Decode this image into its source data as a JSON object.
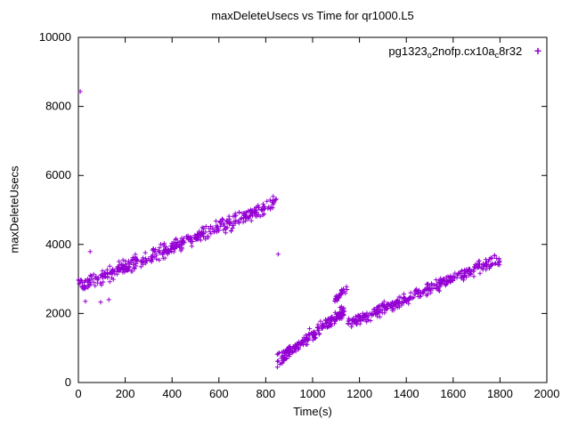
{
  "window": {
    "background": "#ffffff"
  },
  "chart": {
    "title": "maxDeleteUsecs vs Time for qr1000.L5",
    "xlabel": "Time(s)",
    "ylabel": "maxDeleteUsecs",
    "legend": {
      "p1": "pg1323",
      "s1": "o",
      "p2": "2nofp.cx10a",
      "s2": "c",
      "p3": "8r32",
      "marker": "+"
    }
  },
  "chart_data": {
    "type": "scatter",
    "title": "maxDeleteUsecs vs Time for qr1000.L5",
    "xlabel": "Time(s)",
    "ylabel": "maxDeleteUsecs",
    "xlim": [
      0,
      2000
    ],
    "ylim": [
      0,
      10000
    ],
    "xticks": [
      0,
      200,
      400,
      600,
      800,
      1000,
      1200,
      1400,
      1600,
      1800,
      2000
    ],
    "yticks": [
      0,
      2000,
      4000,
      6000,
      8000,
      10000
    ],
    "grid": false,
    "legend_position": "top-right-inside",
    "axis_color": "#000000",
    "seed": 42,
    "series": [
      {
        "name": "pg1323_o2nofp.cx10a_c8r32",
        "marker": "plus",
        "color": "#9400d3",
        "trend_segments": [
          {
            "x_start": 0,
            "x_end": 845,
            "y_start": 2780,
            "y_end": 5180,
            "points": 430,
            "noise": 260
          },
          {
            "x_start": 848,
            "x_end": 1135,
            "y_start": 640,
            "y_end": 2080,
            "points": 210,
            "noise": 230
          },
          {
            "x_start": 1095,
            "x_end": 1148,
            "y_start": 2350,
            "y_end": 2750,
            "points": 30,
            "noise": 150
          },
          {
            "x_start": 1148,
            "x_end": 1800,
            "y_start": 1680,
            "y_end": 3600,
            "points": 340,
            "noise": 210
          }
        ],
        "outlier_points": [
          [
            8,
            8430
          ],
          [
            50,
            3790
          ],
          [
            30,
            2350
          ],
          [
            95,
            2330
          ],
          [
            130,
            2400
          ],
          [
            853,
            3720
          ]
        ]
      }
    ]
  }
}
